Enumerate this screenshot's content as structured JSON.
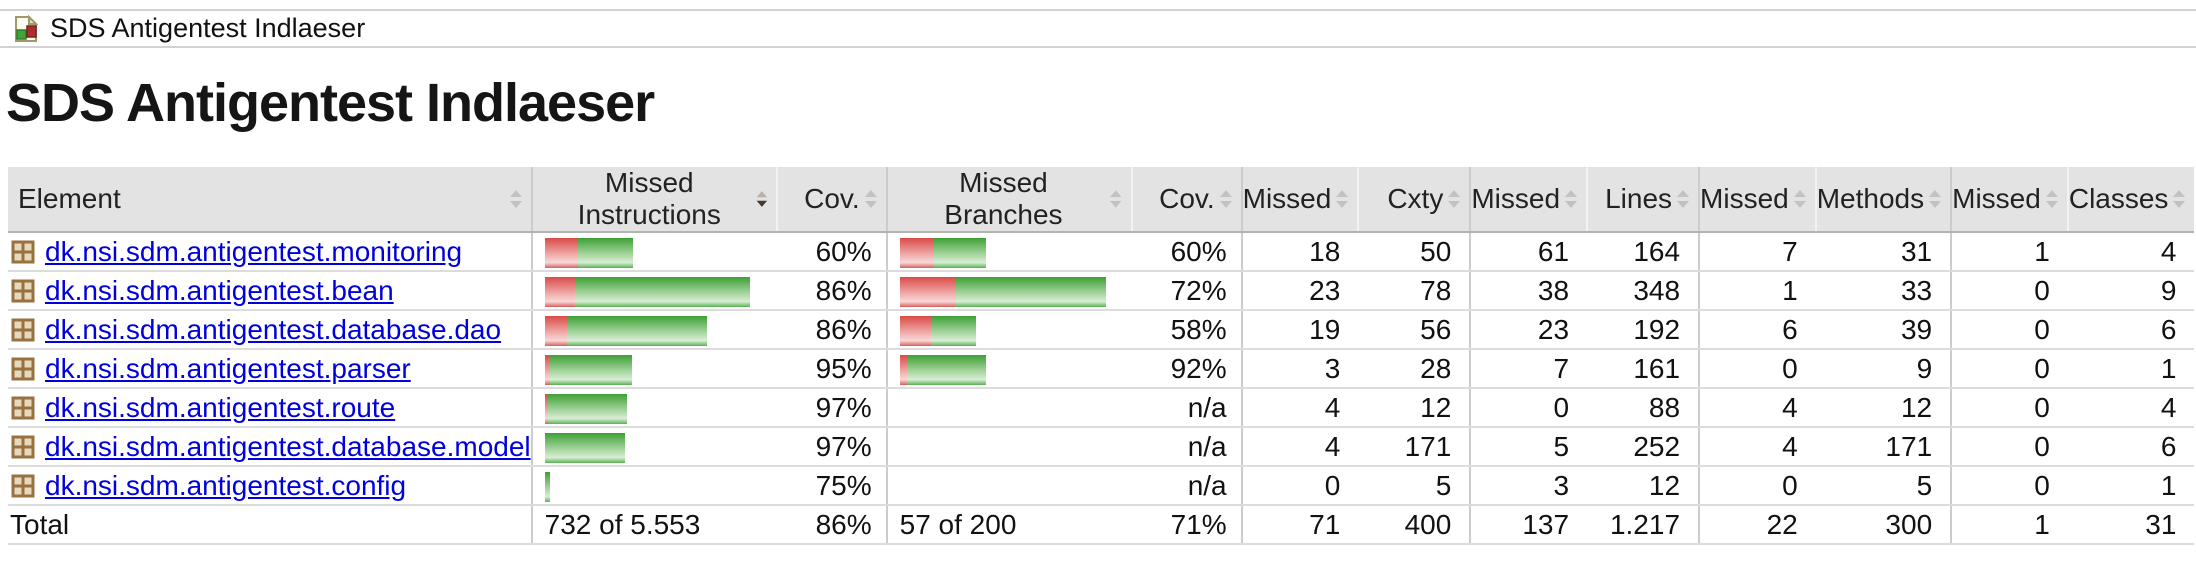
{
  "breadcrumb": {
    "icon": "report-icon",
    "label": "SDS Antigentest Indlaeser"
  },
  "page_title": "SDS Antigentest Indlaeser",
  "colors": {
    "link_blue": "#0000dd",
    "bar_red": "#dd4b4b",
    "bar_green": "#44a93c",
    "header_bg": "#e3e3e3"
  },
  "table": {
    "columns": [
      {
        "label": "Element",
        "sort": "inactive",
        "type": "element"
      },
      {
        "label": "Missed Instructions",
        "sort": "desc",
        "type": "bar"
      },
      {
        "label": "Cov.",
        "sort": "inactive",
        "type": "pct"
      },
      {
        "label": "Missed Branches",
        "sort": "inactive",
        "type": "bar"
      },
      {
        "label": "Cov.",
        "sort": "inactive",
        "type": "pct"
      },
      {
        "label": "Missed",
        "sort": "inactive",
        "type": "num"
      },
      {
        "label": "Cxty",
        "sort": "inactive",
        "type": "num"
      },
      {
        "label": "Missed",
        "sort": "inactive",
        "type": "num"
      },
      {
        "label": "Lines",
        "sort": "inactive",
        "type": "num"
      },
      {
        "label": "Missed",
        "sort": "inactive",
        "type": "num"
      },
      {
        "label": "Methods",
        "sort": "inactive",
        "type": "num"
      },
      {
        "label": "Missed",
        "sort": "inactive",
        "type": "num"
      },
      {
        "label": "Classes",
        "sort": "inactive",
        "type": "num"
      }
    ],
    "rows": [
      {
        "element": "dk.nsi.sdm.antigentest.monitoring",
        "instr_bar": {
          "red": 33,
          "green": 55
        },
        "instr_cov": "60%",
        "branch_bar": {
          "red": 34,
          "green": 52
        },
        "branch_cov": "60%",
        "cells": [
          "18",
          "50",
          "61",
          "164",
          "7",
          "31",
          "1",
          "4"
        ]
      },
      {
        "element": "dk.nsi.sdm.antigentest.bean",
        "instr_bar": {
          "red": 30,
          "green": 175
        },
        "instr_cov": "86%",
        "branch_bar": {
          "red": 56,
          "green": 150
        },
        "branch_cov": "72%",
        "cells": [
          "23",
          "78",
          "38",
          "348",
          "1",
          "33",
          "0",
          "9"
        ]
      },
      {
        "element": "dk.nsi.sdm.antigentest.database.dao",
        "instr_bar": {
          "red": 22,
          "green": 140
        },
        "instr_cov": "86%",
        "branch_bar": {
          "red": 31,
          "green": 45
        },
        "branch_cov": "58%",
        "cells": [
          "19",
          "56",
          "23",
          "192",
          "6",
          "39",
          "0",
          "6"
        ]
      },
      {
        "element": "dk.nsi.sdm.antigentest.parser",
        "instr_bar": {
          "red": 5,
          "green": 82
        },
        "instr_cov": "95%",
        "branch_bar": {
          "red": 7,
          "green": 79
        },
        "branch_cov": "92%",
        "cells": [
          "3",
          "28",
          "7",
          "161",
          "0",
          "9",
          "0",
          "1"
        ]
      },
      {
        "element": "dk.nsi.sdm.antigentest.route",
        "instr_bar": {
          "red": 3,
          "green": 79
        },
        "instr_cov": "97%",
        "branch_bar": {
          "red": 0,
          "green": 0
        },
        "branch_cov": "n/a",
        "cells": [
          "4",
          "12",
          "0",
          "88",
          "4",
          "12",
          "0",
          "4"
        ]
      },
      {
        "element": "dk.nsi.sdm.antigentest.database.model",
        "instr_bar": {
          "red": 0,
          "green": 80
        },
        "instr_cov": "97%",
        "branch_bar": {
          "red": 0,
          "green": 0
        },
        "branch_cov": "n/a",
        "cells": [
          "4",
          "171",
          "5",
          "252",
          "4",
          "171",
          "0",
          "6"
        ]
      },
      {
        "element": "dk.nsi.sdm.antigentest.config",
        "instr_bar": {
          "red": 0,
          "green": 5
        },
        "instr_cov": "75%",
        "branch_bar": {
          "red": 0,
          "green": 0
        },
        "branch_cov": "n/a",
        "cells": [
          "0",
          "5",
          "3",
          "12",
          "0",
          "5",
          "0",
          "1"
        ]
      }
    ],
    "total": {
      "label": "Total",
      "instr_text": "732 of 5.553",
      "instr_cov": "86%",
      "branch_text": "57 of 200",
      "branch_cov": "71%",
      "cells": [
        "71",
        "400",
        "137",
        "1.217",
        "22",
        "300",
        "1",
        "31"
      ]
    }
  }
}
